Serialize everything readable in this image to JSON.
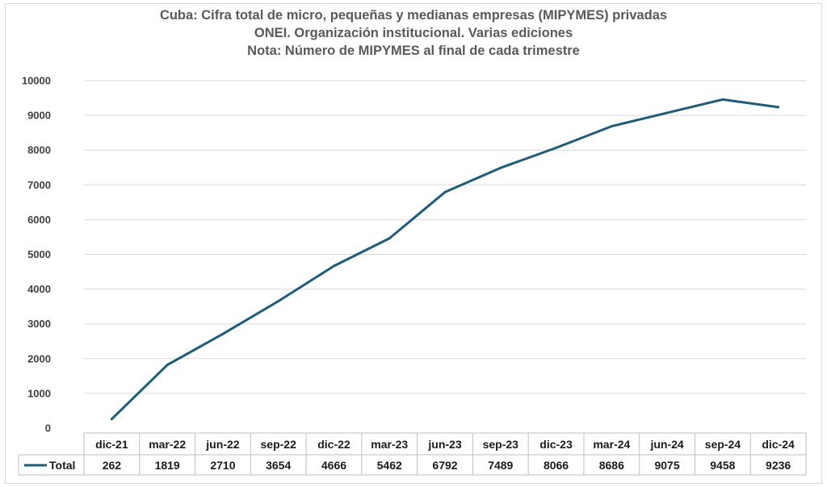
{
  "chart_data": {
    "type": "line",
    "title": "Cuba: Cifra total de micro, pequeñas y medianas empresas (MIPYMES) privadas",
    "subtitle": "ONEI. Organización institucional. Varias ediciones",
    "note": "Nota: Número de MIPYMES al final de cada trimestre",
    "categories": [
      "dic-21",
      "mar-22",
      "jun-22",
      "sep-22",
      "dic-22",
      "mar-23",
      "jun-23",
      "sep-23",
      "dic-23",
      "mar-24",
      "jun-24",
      "sep-24",
      "dic-24"
    ],
    "series": [
      {
        "name": "Total",
        "values": [
          262,
          1819,
          2710,
          3654,
          4666,
          5462,
          6792,
          7489,
          8066,
          8686,
          9075,
          9458,
          9236
        ]
      }
    ],
    "ylim": [
      0,
      10000
    ],
    "yticks": [
      0,
      1000,
      2000,
      3000,
      4000,
      5000,
      6000,
      7000,
      8000,
      9000,
      10000
    ],
    "xlabel": "",
    "ylabel": "",
    "grid": true,
    "data_table": true,
    "line_color": "#1f5c7a"
  }
}
